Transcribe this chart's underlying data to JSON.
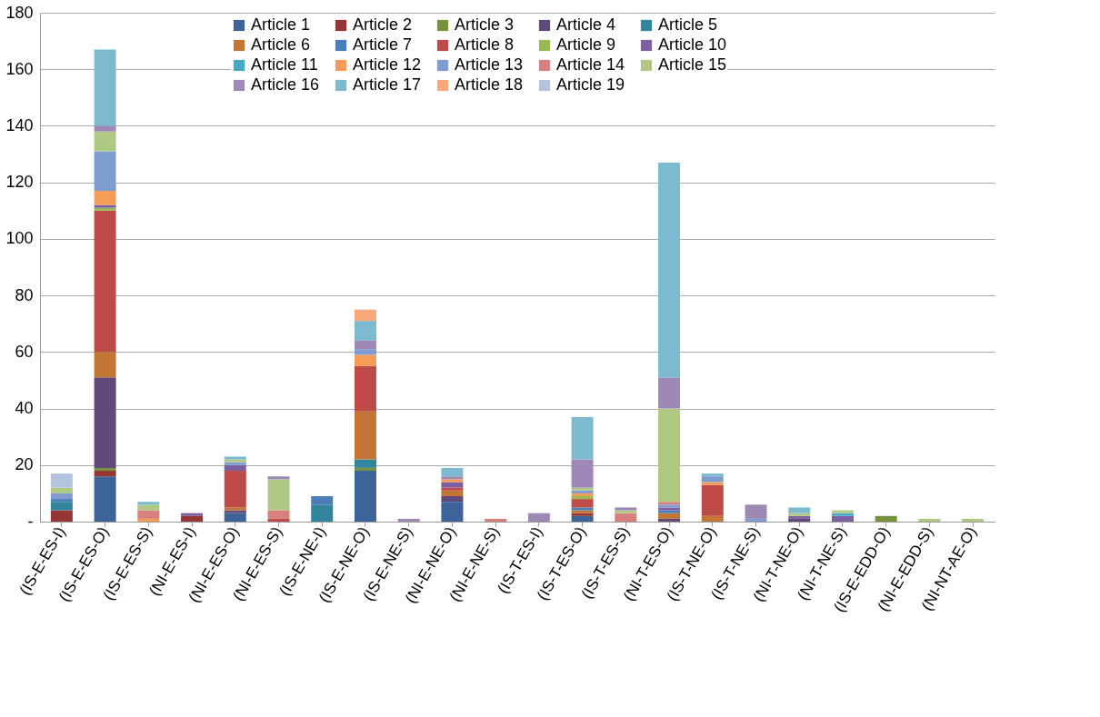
{
  "chart_data": {
    "type": "bar",
    "stacked": true,
    "grid": "y",
    "legend": "top",
    "categories": [
      "(IS-E-ES-I)",
      "(IS-E-ES-O)",
      "(IS-E-ES-S)",
      "(NI-E-ES-I)",
      "(NI-E-ES-O)",
      "(NI-E-ES-S)",
      "(IS-E-NE-I)",
      "(IS-E-NE-O)",
      "(IS-E-NE-S)",
      "(NI-E-NE-O)",
      "(NI-E-NE-S)",
      "(IS-T-ES-I)",
      "(IS-T-ES-O)",
      "(IS-T-ES-S)",
      "(NI-T-ES-O)",
      "(IS-T-NE-O)",
      "(IS-T-NE-S)",
      "(NI-T-NE-O)",
      "(NI-T-NE-S)",
      "(IS-E-EDD-O)",
      "(NI-E-EDD-S)",
      "(NI-NT-AE-O)"
    ],
    "ylim": [
      0,
      180
    ],
    "yticks": [
      {
        "value": 0,
        "label": "-"
      },
      20,
      40,
      60,
      80,
      100,
      120,
      140,
      160,
      180
    ],
    "series": [
      {
        "name": "Article 1",
        "color": "#3c6498",
        "values": [
          null,
          16,
          null,
          null,
          3,
          null,
          null,
          18,
          null,
          7,
          null,
          null,
          2,
          null,
          null,
          null,
          null,
          null,
          null,
          null,
          null,
          null
        ]
      },
      {
        "name": "Article 2",
        "color": "#963634",
        "values": [
          4,
          2,
          null,
          2,
          null,
          null,
          null,
          null,
          null,
          null,
          null,
          null,
          1,
          null,
          null,
          null,
          null,
          null,
          null,
          null,
          null,
          null
        ]
      },
      {
        "name": "Article 3",
        "color": "#76923c",
        "values": [
          null,
          1,
          null,
          null,
          null,
          null,
          null,
          1,
          null,
          null,
          null,
          null,
          null,
          null,
          null,
          null,
          null,
          null,
          null,
          2,
          null,
          null
        ]
      },
      {
        "name": "Article 4",
        "color": "#604a7b",
        "values": [
          null,
          32,
          null,
          null,
          1,
          null,
          null,
          null,
          null,
          2,
          null,
          null,
          null,
          null,
          1,
          null,
          null,
          1,
          null,
          null,
          null,
          null
        ]
      },
      {
        "name": "Article 5",
        "color": "#31859c",
        "values": [
          3,
          null,
          null,
          null,
          null,
          null,
          6,
          3,
          null,
          null,
          null,
          null,
          null,
          null,
          null,
          null,
          null,
          null,
          null,
          null,
          null,
          null
        ]
      },
      {
        "name": "Article 6",
        "color": "#c27535",
        "values": [
          null,
          9,
          null,
          null,
          1,
          null,
          null,
          17,
          null,
          2,
          null,
          null,
          1,
          null,
          2,
          2,
          null,
          null,
          null,
          null,
          null,
          null
        ]
      },
      {
        "name": "Article 7",
        "color": "#4a7ebb",
        "values": [
          1,
          null,
          null,
          null,
          null,
          null,
          3,
          null,
          null,
          null,
          null,
          null,
          1,
          null,
          1,
          null,
          null,
          null,
          null,
          null,
          null,
          null
        ]
      },
      {
        "name": "Article 8",
        "color": "#be4b48",
        "values": [
          null,
          50,
          null,
          null,
          13,
          1,
          null,
          16,
          null,
          1,
          null,
          null,
          3,
          null,
          null,
          11,
          null,
          null,
          null,
          null,
          null,
          null
        ]
      },
      {
        "name": "Article 9",
        "color": "#98b954",
        "values": [
          null,
          1,
          null,
          null,
          null,
          null,
          null,
          null,
          null,
          null,
          null,
          null,
          1,
          null,
          null,
          null,
          null,
          null,
          null,
          null,
          null,
          null
        ]
      },
      {
        "name": "Article 10",
        "color": "#7d60a0",
        "values": [
          null,
          1,
          null,
          1,
          2,
          null,
          null,
          null,
          null,
          2,
          null,
          null,
          null,
          null,
          1,
          null,
          null,
          1,
          2,
          null,
          null,
          null
        ]
      },
      {
        "name": "Article 11",
        "color": "#46aac5",
        "values": [
          null,
          null,
          null,
          null,
          null,
          null,
          null,
          null,
          null,
          null,
          null,
          null,
          null,
          null,
          null,
          null,
          null,
          null,
          1,
          null,
          null,
          null
        ]
      },
      {
        "name": "Article 12",
        "color": "#f59d56",
        "values": [
          null,
          5,
          1,
          null,
          null,
          null,
          null,
          4,
          null,
          1,
          null,
          null,
          1,
          null,
          null,
          1,
          null,
          null,
          null,
          null,
          null,
          null
        ]
      },
      {
        "name": "Article 13",
        "color": "#7e9ccf",
        "values": [
          2,
          14,
          null,
          null,
          1,
          null,
          null,
          2,
          null,
          null,
          null,
          null,
          1,
          null,
          1,
          2,
          1,
          null,
          null,
          null,
          null,
          null
        ]
      },
      {
        "name": "Article 14",
        "color": "#d7807e",
        "values": [
          null,
          null,
          3,
          null,
          null,
          3,
          null,
          null,
          null,
          null,
          1,
          null,
          null,
          3,
          1,
          null,
          null,
          null,
          null,
          null,
          null,
          null
        ]
      },
      {
        "name": "Article 15",
        "color": "#afc985",
        "values": [
          2,
          7,
          2,
          null,
          1,
          11,
          null,
          null,
          null,
          null,
          null,
          null,
          1,
          1,
          33,
          null,
          null,
          1,
          1,
          null,
          1,
          1
        ]
      },
      {
        "name": "Article 16",
        "color": "#9e89b6",
        "values": [
          null,
          2,
          null,
          null,
          null,
          1,
          null,
          3,
          1,
          1,
          null,
          3,
          10,
          1,
          11,
          null,
          5,
          null,
          null,
          null,
          null,
          null
        ]
      },
      {
        "name": "Article 17",
        "color": "#7cbacf",
        "values": [
          null,
          27,
          1,
          null,
          1,
          null,
          null,
          7,
          null,
          3,
          null,
          null,
          15,
          null,
          76,
          1,
          null,
          2,
          null,
          null,
          null,
          null
        ]
      },
      {
        "name": "Article 18",
        "color": "#f8a97b",
        "values": [
          null,
          null,
          null,
          null,
          null,
          null,
          null,
          4,
          null,
          null,
          null,
          null,
          null,
          null,
          null,
          null,
          null,
          null,
          null,
          null,
          null,
          null
        ]
      },
      {
        "name": "Article 19",
        "color": "#b4c3de",
        "values": [
          5,
          null,
          null,
          null,
          null,
          null,
          null,
          null,
          null,
          null,
          null,
          null,
          null,
          null,
          null,
          null,
          null,
          null,
          null,
          null,
          null,
          null
        ]
      }
    ]
  }
}
